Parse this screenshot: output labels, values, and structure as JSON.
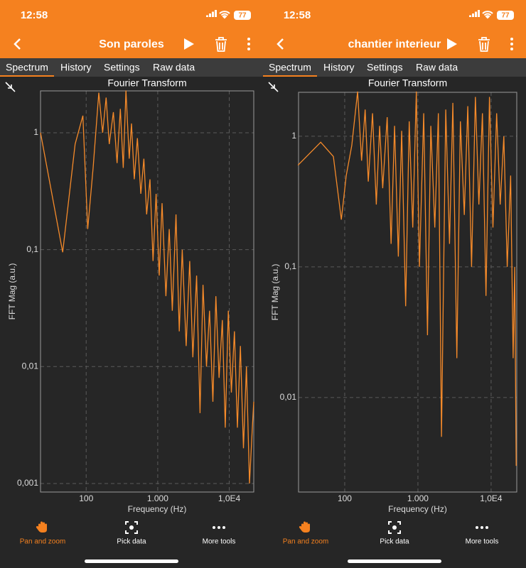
{
  "screens": [
    {
      "status_time": "12:58",
      "battery": "77",
      "title": "Son paroles",
      "tabs": [
        "Spectrum",
        "History",
        "Settings",
        "Raw data"
      ],
      "chart_data": {
        "type": "line",
        "title": "Fourier Transform",
        "xlabel": "Frequency (Hz)",
        "ylabel": "FFT Mag (a.u.)",
        "xscale": "log",
        "yscale": "log",
        "grid": true,
        "xlim": [
          23,
          22000
        ],
        "ylim": [
          0.000845,
          2.28
        ],
        "xticks": [
          100,
          {
            "value": 1000,
            "label": "1.000"
          },
          {
            "value": 10000,
            "label": "1,0E4"
          }
        ],
        "yticks": [
          {
            "value": 0.001,
            "label": "0,001"
          },
          {
            "value": 0.01,
            "label": "0,01"
          },
          {
            "value": 0.1,
            "label": "0,1"
          },
          1
        ],
        "x": [
          23,
          47,
          70,
          90,
          105,
          125,
          150,
          170,
          190,
          210,
          240,
          270,
          300,
          330,
          360,
          400,
          430,
          470,
          520,
          580,
          640,
          700,
          780,
          860,
          950,
          1050,
          1150,
          1300,
          1450,
          1600,
          1800,
          2000,
          2200,
          2500,
          2800,
          3100,
          3500,
          3900,
          4300,
          4800,
          5300,
          5900,
          6500,
          7200,
          8000,
          8800,
          9700,
          10700,
          11800,
          13000,
          14300,
          15800,
          17400,
          19200,
          21000,
          22000
        ],
        "series": [
          {
            "color": "#f58a2a",
            "values": [
              1.0,
              0.095,
              0.8,
              1.4,
              0.15,
              0.5,
              2.2,
              1.0,
              2.0,
              0.8,
              1.5,
              0.55,
              1.6,
              0.5,
              2.3,
              0.6,
              1.2,
              0.4,
              0.9,
              0.3,
              0.6,
              0.2,
              0.4,
              0.08,
              0.3,
              0.06,
              0.25,
              0.04,
              0.15,
              0.03,
              0.2,
              0.02,
              0.1,
              0.015,
              0.08,
              0.012,
              0.06,
              0.004,
              0.05,
              0.01,
              0.03,
              0.005,
              0.04,
              0.008,
              0.025,
              0.003,
              0.03,
              0.006,
              0.02,
              0.003,
              0.015,
              0.002,
              0.01,
              0.001,
              0.003,
              0.005
            ]
          }
        ]
      },
      "tools": [
        "Pan and zoom",
        "Pick data",
        "More tools"
      ]
    },
    {
      "status_time": "12:58",
      "battery": "77",
      "title": "chantier interieur",
      "tabs": [
        "Spectrum",
        "History",
        "Settings",
        "Raw data"
      ],
      "chart_data": {
        "type": "line",
        "title": "Fourier Transform",
        "xlabel": "Frequency (Hz)",
        "ylabel": "FFT Mag (a.u.)",
        "xscale": "log",
        "yscale": "log",
        "grid": true,
        "xlim": [
          23.4,
          22400
        ],
        "ylim": [
          0.00189,
          2.17
        ],
        "xticks": [
          100,
          {
            "value": 1000,
            "label": "1.000"
          },
          {
            "value": 10000,
            "label": "1,0E4"
          }
        ],
        "yticks": [
          {
            "value": 0.01,
            "label": "0,01"
          },
          {
            "value": 0.1,
            "label": "0,1"
          },
          1
        ],
        "x": [
          23,
          47,
          70,
          90,
          105,
          125,
          150,
          170,
          190,
          210,
          240,
          270,
          300,
          330,
          380,
          430,
          480,
          540,
          600,
          680,
          760,
          850,
          950,
          1050,
          1200,
          1350,
          1500,
          1700,
          1900,
          2100,
          2400,
          2700,
          3000,
          3400,
          3800,
          4300,
          4800,
          5400,
          6100,
          6800,
          7600,
          8500,
          9500,
          10600,
          11900,
          13300,
          14900,
          16600,
          18500,
          20000,
          21000,
          22000
        ],
        "series": [
          {
            "color": "#f58a2a",
            "values": [
              0.6,
              0.9,
              0.7,
              0.23,
              0.5,
              0.85,
              2.2,
              0.65,
              1.6,
              0.45,
              1.5,
              0.3,
              1.2,
              0.4,
              1.4,
              0.15,
              1.2,
              0.12,
              1.1,
              0.05,
              1.3,
              0.2,
              2.2,
              0.1,
              1.5,
              0.03,
              1.2,
              0.2,
              1.5,
              0.005,
              1.6,
              0.15,
              1.8,
              0.02,
              1.3,
              0.25,
              1.7,
              0.1,
              2.0,
              0.3,
              1.5,
              0.06,
              2.0,
              0.2,
              1.5,
              0.3,
              1.0,
              0.1,
              0.5,
              0.02,
              0.1,
              0.003
            ]
          }
        ]
      },
      "tools": [
        "Pan and zoom",
        "Pick data",
        "More tools"
      ]
    }
  ]
}
